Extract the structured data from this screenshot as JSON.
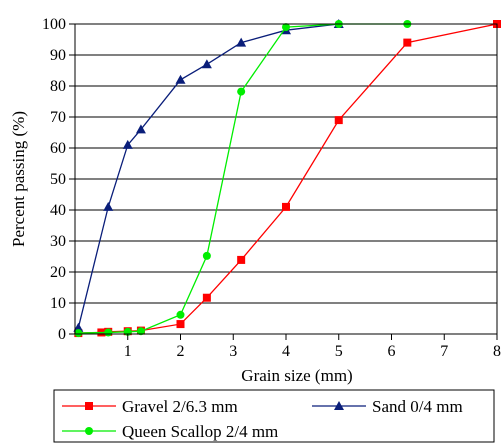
{
  "chart_data": {
    "type": "line",
    "xlabel": "Grain size (mm)",
    "ylabel": "Percent passing (%)",
    "xlim": [
      0,
      8
    ],
    "ylim": [
      0,
      100
    ],
    "xticks": [
      1,
      2,
      3,
      4,
      5,
      6,
      7,
      8
    ],
    "yticks": [
      0,
      10,
      20,
      30,
      40,
      50,
      60,
      70,
      80,
      90,
      100
    ],
    "grid": "horizontal",
    "legend_position": "bottom",
    "series": [
      {
        "name": "Gravel 2/6.3 mm",
        "color": "#ff0000",
        "marker": "square",
        "x": [
          0.063,
          0.5,
          0.63,
          1.0,
          1.25,
          2.0,
          2.5,
          3.15,
          4.0,
          5.0,
          6.3,
          8.0
        ],
        "y": [
          0.3,
          0.5,
          0.7,
          0.9,
          1.1,
          3.2,
          11.7,
          23.9,
          41.0,
          69.0,
          94.0,
          100.0
        ]
      },
      {
        "name": "Sand 0/4 mm",
        "color": "#0a1e7a",
        "marker": "triangle",
        "x": [
          0.063,
          0.63,
          1.0,
          1.25,
          2.0,
          2.5,
          3.15,
          4.0,
          5.0
        ],
        "y": [
          2.0,
          41.0,
          61.0,
          66.0,
          82.0,
          87.0,
          94.0,
          98.0,
          100.0
        ]
      },
      {
        "name": "Queen Scallop 2/4 mm",
        "color": "#00ee00",
        "marker": "circle",
        "x": [
          0.063,
          0.63,
          1.0,
          1.25,
          2.0,
          2.5,
          3.15,
          4.0,
          5.0,
          6.3
        ],
        "y": [
          0.3,
          0.5,
          0.7,
          0.9,
          6.2,
          25.2,
          78.2,
          99.0,
          100.0,
          100.0
        ]
      }
    ]
  }
}
